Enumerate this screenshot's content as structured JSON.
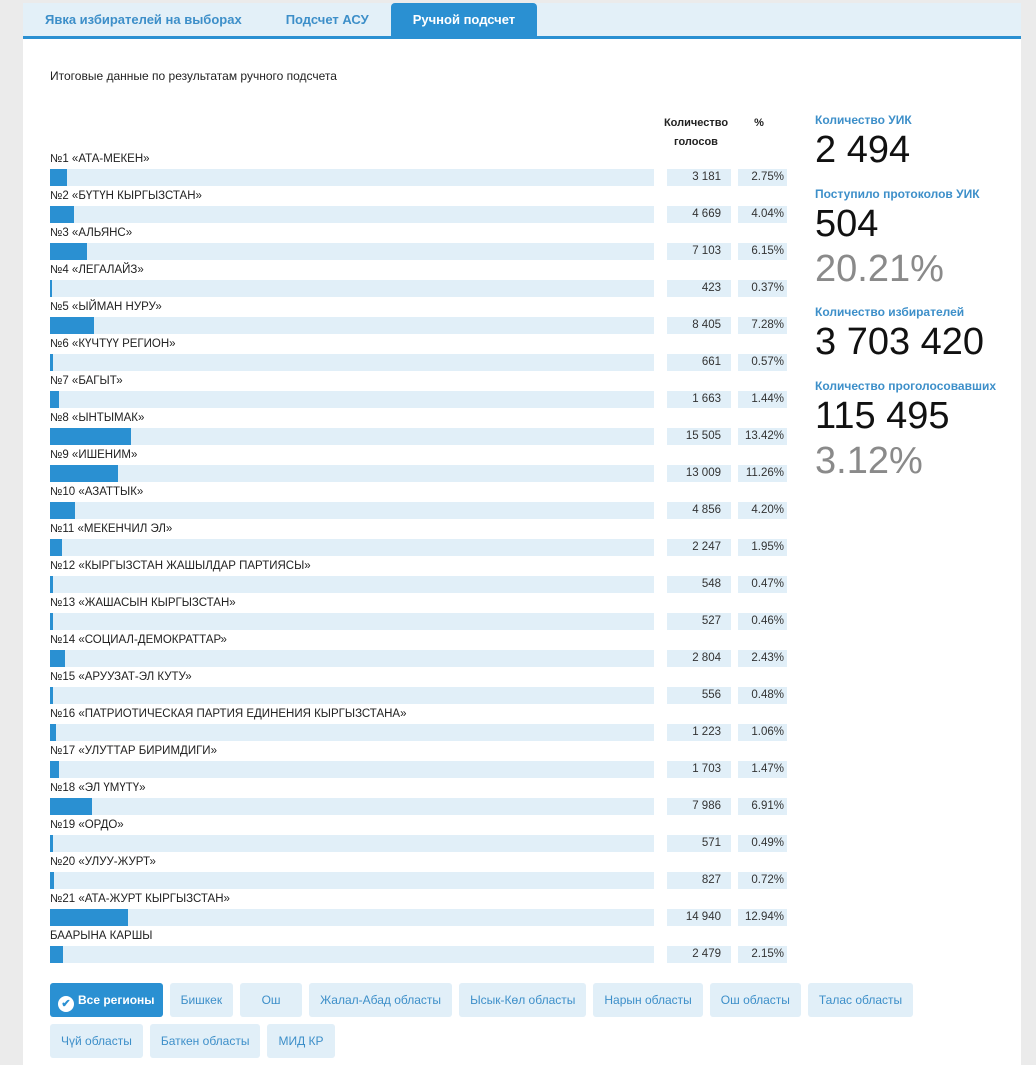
{
  "tabs": [
    "Явка избирателей на выборах",
    "Подсчет АСУ",
    "Ручной подсчет"
  ],
  "title": "Итоговые данные по результатам ручного подсчета",
  "headers": {
    "votes1": "Количество",
    "votes2": "голосов",
    "pct": "%"
  },
  "parties": [
    {
      "name": "№1 «АТА-МЕКЕН»",
      "votes": "3 181",
      "pct": "2.75%",
      "p": 2.75
    },
    {
      "name": "№2 «БҮТҮН КЫРГЫЗСТАН»",
      "votes": "4 669",
      "pct": "4.04%",
      "p": 4.04
    },
    {
      "name": "№3 «АЛЬЯНС»",
      "votes": "7 103",
      "pct": "6.15%",
      "p": 6.15
    },
    {
      "name": "№4 «ЛЕГАЛАЙЗ»",
      "votes": "423",
      "pct": "0.37%",
      "p": 0.37
    },
    {
      "name": "№5 «ЫЙМАН НУРУ»",
      "votes": "8 405",
      "pct": "7.28%",
      "p": 7.28
    },
    {
      "name": "№6 «КҮЧТҮҮ РЕГИОН»",
      "votes": "661",
      "pct": "0.57%",
      "p": 0.57
    },
    {
      "name": "№7 «БАГЫТ»",
      "votes": "1 663",
      "pct": "1.44%",
      "p": 1.44
    },
    {
      "name": "№8 «ЫНТЫМАК»",
      "votes": "15 505",
      "pct": "13.42%",
      "p": 13.42
    },
    {
      "name": "№9 «ИШЕНИМ»",
      "votes": "13 009",
      "pct": "11.26%",
      "p": 11.26
    },
    {
      "name": "№10 «АЗАТТЫК»",
      "votes": "4 856",
      "pct": "4.20%",
      "p": 4.2
    },
    {
      "name": "№11 «МЕКЕНЧИЛ ЭЛ»",
      "votes": "2 247",
      "pct": "1.95%",
      "p": 1.95
    },
    {
      "name": "№12 «КЫРГЫЗСТАН ЖАШЫЛДАР ПАРТИЯСЫ»",
      "votes": "548",
      "pct": "0.47%",
      "p": 0.47
    },
    {
      "name": "№13 «ЖАШАСЫН КЫРГЫЗСТАН»",
      "votes": "527",
      "pct": "0.46%",
      "p": 0.46
    },
    {
      "name": "№14 «СОЦИАЛ-ДЕМОКРАТТАР»",
      "votes": "2 804",
      "pct": "2.43%",
      "p": 2.43
    },
    {
      "name": "№15 «АРУУЗАТ-ЭЛ КУТУ»",
      "votes": "556",
      "pct": "0.48%",
      "p": 0.48
    },
    {
      "name": "№16 «ПАТРИОТИЧЕСКАЯ ПАРТИЯ ЕДИНЕНИЯ КЫРГЫЗСТАНА»",
      "votes": "1 223",
      "pct": "1.06%",
      "p": 1.06
    },
    {
      "name": "№17 «УЛУТТАР БИРИМДИГИ»",
      "votes": "1 703",
      "pct": "1.47%",
      "p": 1.47
    },
    {
      "name": "№18 «ЭЛ ҮМҮТҮ»",
      "votes": "7 986",
      "pct": "6.91%",
      "p": 6.91
    },
    {
      "name": "№19 «ОРДО»",
      "votes": "571",
      "pct": "0.49%",
      "p": 0.49
    },
    {
      "name": "№20 «УЛУУ-ЖУРТ»",
      "votes": "827",
      "pct": "0.72%",
      "p": 0.72
    },
    {
      "name": "№21 «АТА-ЖУРТ КЫРГЫЗСТАН»",
      "votes": "14 940",
      "pct": "12.94%",
      "p": 12.94
    },
    {
      "name": "БААРЫНА КАРШЫ",
      "votes": "2 479",
      "pct": "2.15%",
      "p": 2.15
    }
  ],
  "stats": {
    "uik_label": "Количество УИК",
    "uik": "2 494",
    "proto_label": "Поступило протоколов УИК",
    "proto": "504",
    "proto_pct": "20.21%",
    "voters_label": "Количество избирателей",
    "voters": "3 703 420",
    "voted_label": "Количество проголосовавших",
    "voted": "115 495",
    "voted_pct": "3.12%"
  },
  "regions": [
    "Все регионы",
    "Бишкек",
    "Ош",
    "Жалал-Абад областы",
    "Ысык-Көл областы",
    "Нарын областы",
    "Ош областы",
    "Талас областы",
    "Чүй областы",
    "Баткен областы",
    "МИД КР"
  ],
  "colors": {
    "accent": "#2a90d2",
    "light": "#e1eff8"
  }
}
